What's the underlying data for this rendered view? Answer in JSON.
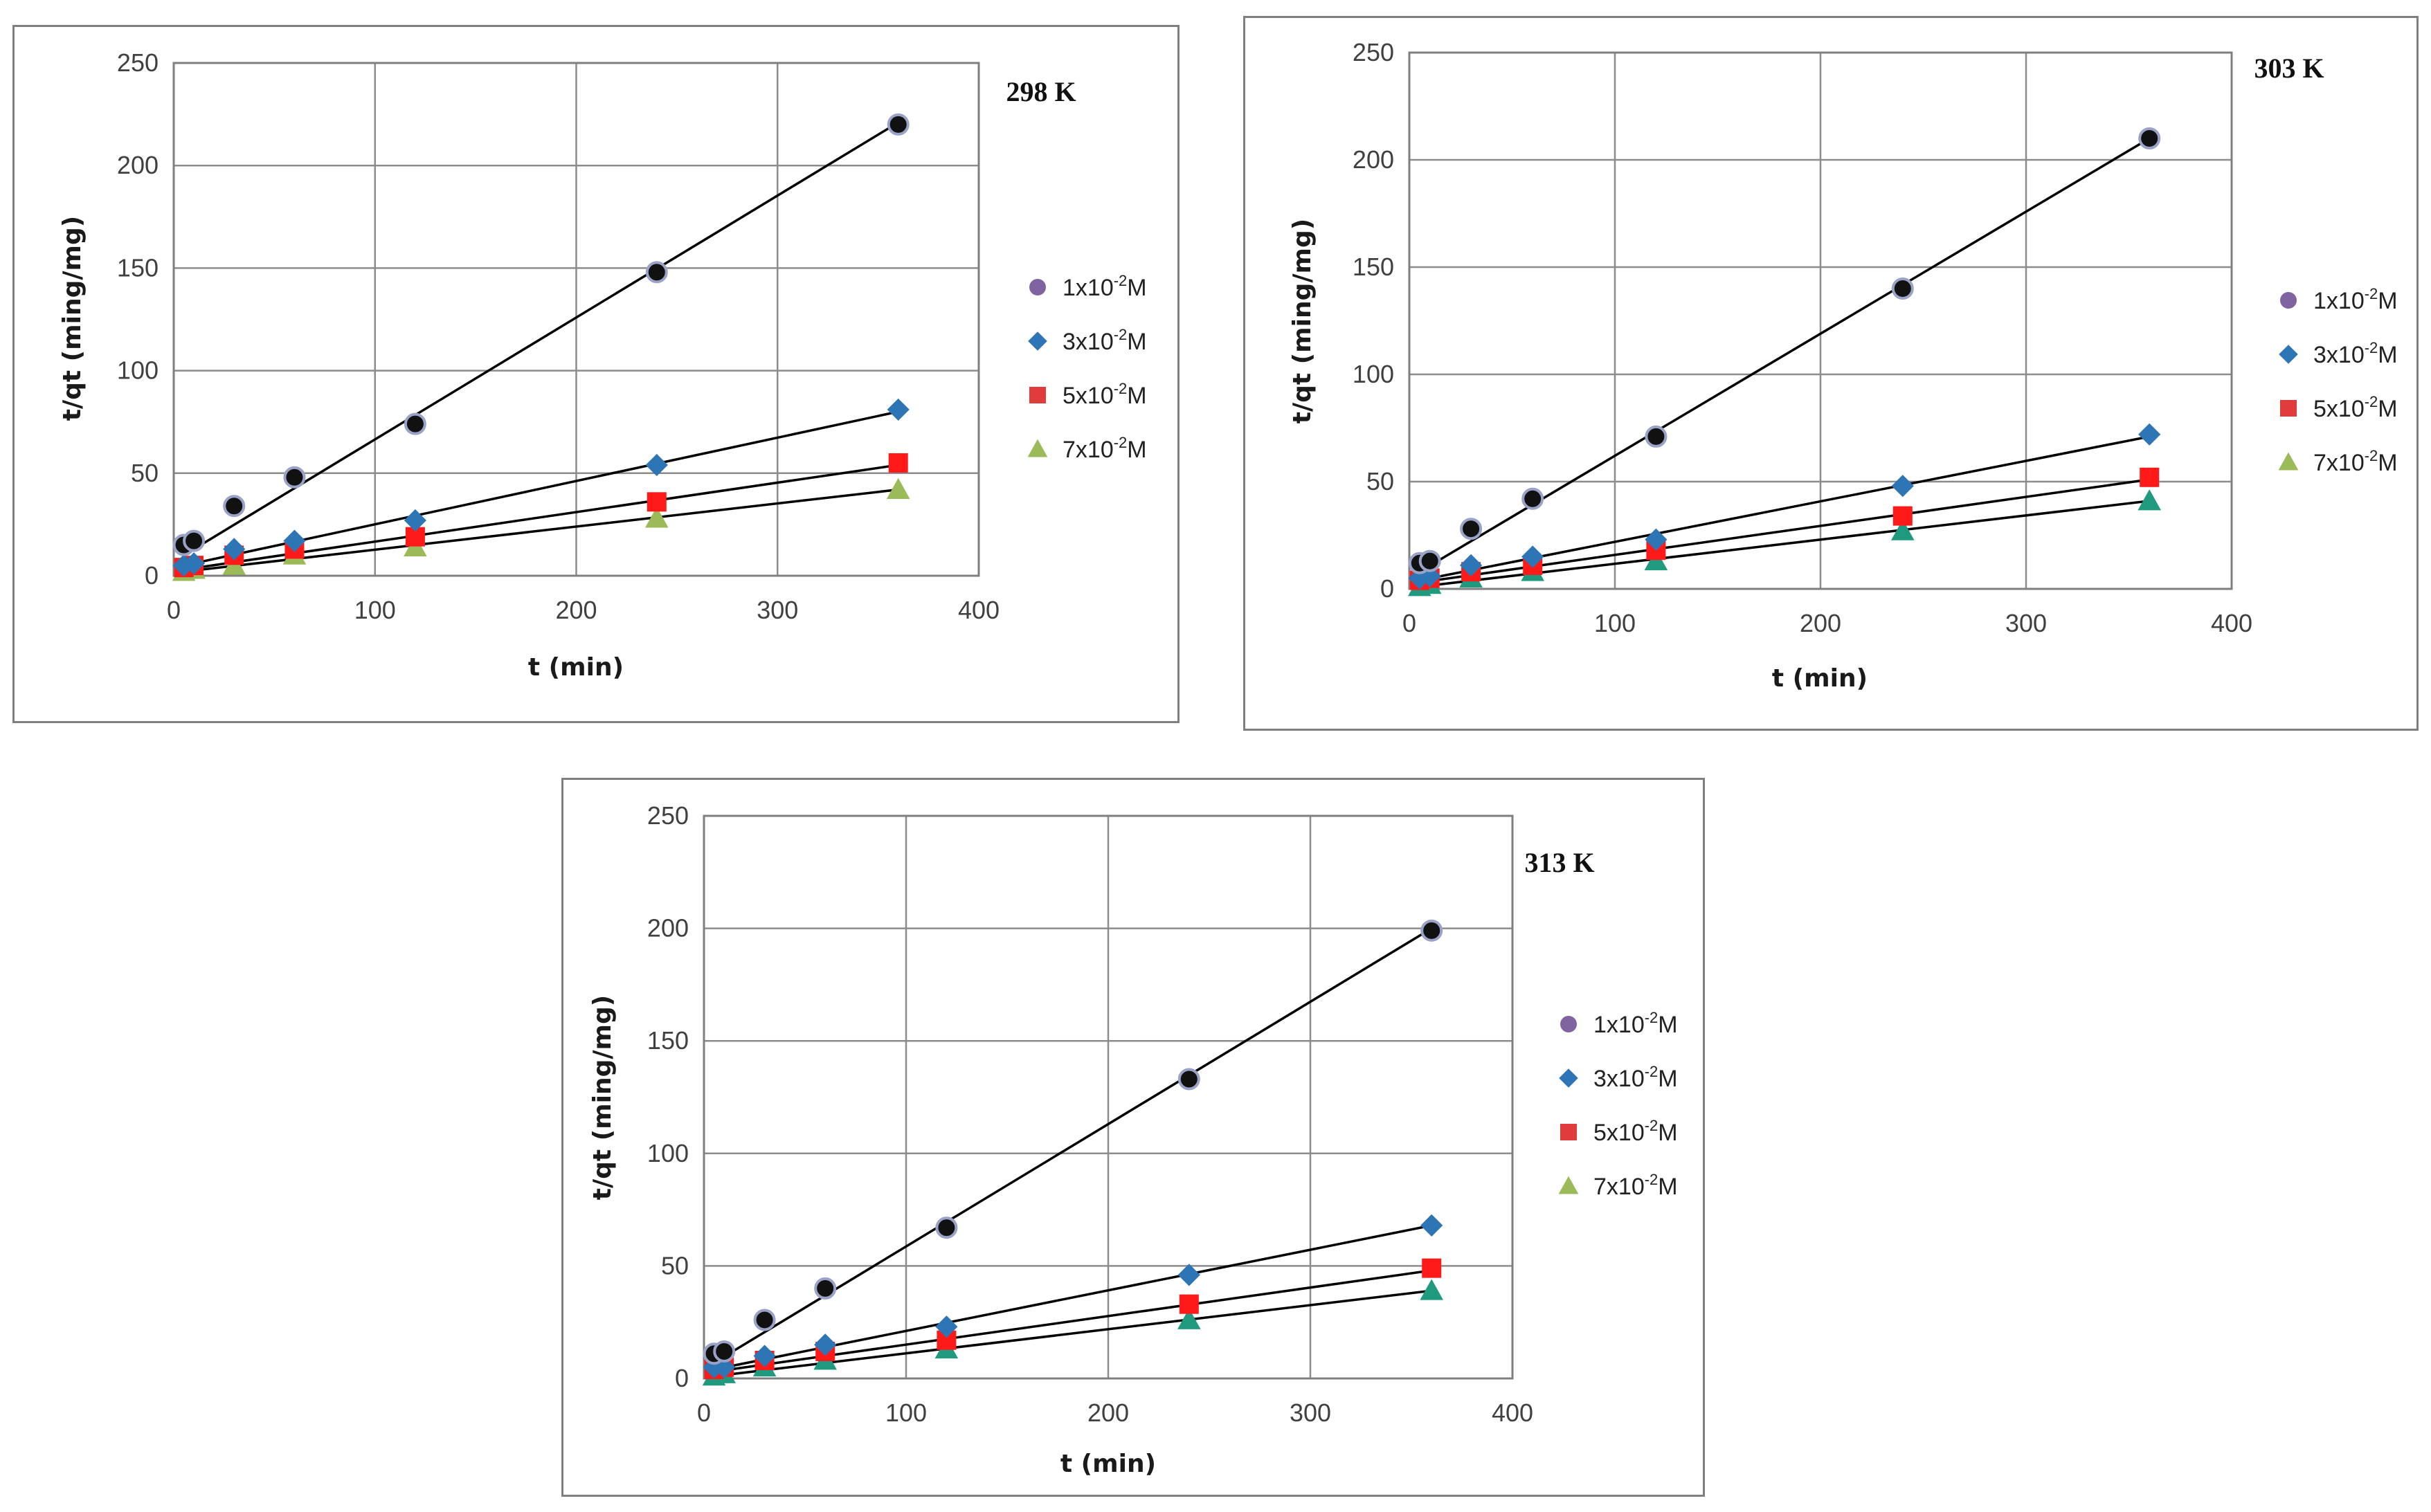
{
  "figure": {
    "legend_entries": [
      {
        "base": "1x10",
        "exponent": "-2",
        "unit": "M",
        "marker": "circle",
        "color": "#8064a2"
      },
      {
        "base": "3x10",
        "exponent": "-2",
        "unit": "M",
        "marker": "diamond",
        "color": "#2e75b6"
      },
      {
        "base": "5x10",
        "exponent": "-2",
        "unit": "M",
        "marker": "square",
        "color": "#e03c3c"
      },
      {
        "base": "7x10",
        "exponent": "-2",
        "unit": "M",
        "marker": "triangle",
        "color": "#9bbb59"
      }
    ],
    "plotted_colors": {
      "circle_fill": "#111111",
      "circle_stroke": "#9aa3c7",
      "diamond": "#2e75b6",
      "square": "#ff1a1a",
      "triangle_298": "#9bbb59",
      "triangle_other": "#1f9a7e"
    }
  },
  "chart_data": [
    {
      "id": "298",
      "type": "scatter",
      "title": "298 K",
      "xlabel": "t (min)",
      "ylabel": "t/qt (ming/mg)",
      "xlim": [
        0,
        400
      ],
      "ylim": [
        0,
        250
      ],
      "xticks": [
        0,
        100,
        200,
        300,
        400
      ],
      "yticks": [
        0,
        50,
        100,
        150,
        200,
        250
      ],
      "grid": true,
      "legend_position": "right",
      "x": [
        5,
        10,
        30,
        60,
        120,
        240,
        360
      ],
      "series": [
        {
          "name": "1x10-2M",
          "marker": "circle",
          "values": [
            15,
            17,
            34,
            48,
            74,
            148,
            220
          ],
          "fit": [
            [
              5,
              10
            ],
            [
              360,
              221
            ]
          ]
        },
        {
          "name": "3x10-2M",
          "marker": "diamond",
          "values": [
            5,
            6,
            13,
            17,
            27,
            54,
            81
          ],
          "fit": [
            [
              5,
              5
            ],
            [
              360,
              80
            ]
          ]
        },
        {
          "name": "5x10-2M",
          "marker": "square",
          "values": [
            4,
            5,
            10,
            13,
            19,
            36,
            55
          ],
          "fit": [
            [
              5,
              3
            ],
            [
              360,
              54
            ]
          ]
        },
        {
          "name": "7x10-2M",
          "marker": "triangle",
          "values": [
            2,
            3,
            5,
            10,
            14,
            28,
            42
          ],
          "fit": [
            [
              5,
              2
            ],
            [
              360,
              42
            ]
          ]
        }
      ]
    },
    {
      "id": "303",
      "type": "scatter",
      "title": "303 K",
      "xlabel": "t (min)",
      "ylabel": "t/qt (ming/mg)",
      "xlim": [
        0,
        400
      ],
      "ylim": [
        0,
        250
      ],
      "xticks": [
        0,
        100,
        200,
        300,
        400
      ],
      "yticks": [
        0,
        50,
        100,
        150,
        200,
        250
      ],
      "grid": true,
      "legend_position": "right",
      "x": [
        5,
        10,
        30,
        60,
        120,
        240,
        360
      ],
      "series": [
        {
          "name": "1x10-2M",
          "marker": "circle",
          "values": [
            12,
            13,
            28,
            42,
            71,
            140,
            210
          ],
          "fit": [
            [
              5,
              8
            ],
            [
              360,
              210
            ]
          ]
        },
        {
          "name": "3x10-2M",
          "marker": "diamond",
          "values": [
            5,
            6,
            11,
            15,
            23,
            48,
            72
          ],
          "fit": [
            [
              5,
              4
            ],
            [
              360,
              71
            ]
          ]
        },
        {
          "name": "5x10-2M",
          "marker": "square",
          "values": [
            4,
            5,
            8,
            11,
            18,
            34,
            52
          ],
          "fit": [
            [
              5,
              3
            ],
            [
              360,
              51
            ]
          ]
        },
        {
          "name": "7x10-2M",
          "marker": "triangle",
          "values": [
            1,
            2,
            5,
            8,
            13,
            27,
            41
          ],
          "fit": [
            [
              5,
              1
            ],
            [
              360,
              41
            ]
          ]
        }
      ]
    },
    {
      "id": "313",
      "type": "scatter",
      "title": "313 K",
      "xlabel": "t (min)",
      "ylabel": "t/qt (ming/mg)",
      "xlim": [
        0,
        400
      ],
      "ylim": [
        0,
        250
      ],
      "xticks": [
        0,
        100,
        200,
        300,
        400
      ],
      "yticks": [
        0,
        50,
        100,
        150,
        200,
        250
      ],
      "grid": true,
      "legend_position": "right",
      "x": [
        5,
        10,
        30,
        60,
        120,
        240,
        360
      ],
      "series": [
        {
          "name": "1x10-2M",
          "marker": "circle",
          "values": [
            11,
            12,
            26,
            40,
            67,
            133,
            199
          ],
          "fit": [
            [
              5,
              7
            ],
            [
              360,
              200
            ]
          ]
        },
        {
          "name": "3x10-2M",
          "marker": "diamond",
          "values": [
            5,
            5,
            10,
            15,
            23,
            46,
            68
          ],
          "fit": [
            [
              5,
              4
            ],
            [
              360,
              68
            ]
          ]
        },
        {
          "name": "5x10-2M",
          "marker": "square",
          "values": [
            4,
            5,
            8,
            12,
            17,
            33,
            49
          ],
          "fit": [
            [
              5,
              3
            ],
            [
              360,
              48
            ]
          ]
        },
        {
          "name": "7x10-2M",
          "marker": "triangle",
          "values": [
            1,
            2,
            5,
            8,
            13,
            26,
            39
          ],
          "fit": [
            [
              5,
              1
            ],
            [
              360,
              39
            ]
          ]
        }
      ]
    }
  ]
}
